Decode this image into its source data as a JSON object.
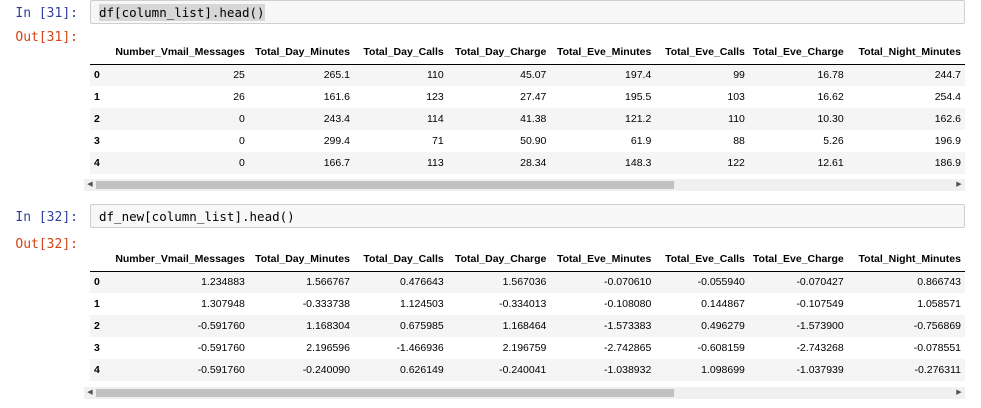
{
  "cells": [
    {
      "in_prompt": "In [31]:",
      "code": "df[column_list].head()",
      "out_prompt": "Out[31]:",
      "columns": [
        "Number_Vmail_Messages",
        "Total_Day_Minutes",
        "Total_Day_Calls",
        "Total_Day_Charge",
        "Total_Eve_Minutes",
        "Total_Eve_Calls",
        "Total_Eve_Charge",
        "Total_Night_Minutes"
      ],
      "rows": [
        {
          "index": "0",
          "values": [
            "25",
            "265.1",
            "110",
            "45.07",
            "197.4",
            "99",
            "16.78",
            "244.7"
          ]
        },
        {
          "index": "1",
          "values": [
            "26",
            "161.6",
            "123",
            "27.47",
            "195.5",
            "103",
            "16.62",
            "254.4"
          ]
        },
        {
          "index": "2",
          "values": [
            "0",
            "243.4",
            "114",
            "41.38",
            "121.2",
            "110",
            "10.30",
            "162.6"
          ]
        },
        {
          "index": "3",
          "values": [
            "0",
            "299.4",
            "71",
            "50.90",
            "61.9",
            "88",
            "5.26",
            "196.9"
          ]
        },
        {
          "index": "4",
          "values": [
            "0",
            "166.7",
            "113",
            "28.34",
            "148.3",
            "122",
            "12.61",
            "186.9"
          ]
        }
      ]
    },
    {
      "in_prompt": "In [32]:",
      "code": "df_new[column_list].head()",
      "out_prompt": "Out[32]:",
      "columns": [
        "Number_Vmail_Messages",
        "Total_Day_Minutes",
        "Total_Day_Calls",
        "Total_Day_Charge",
        "Total_Eve_Minutes",
        "Total_Eve_Calls",
        "Total_Eve_Charge",
        "Total_Night_Minutes"
      ],
      "rows": [
        {
          "index": "0",
          "values": [
            "1.234883",
            "1.566767",
            "0.476643",
            "1.567036",
            "-0.070610",
            "-0.055940",
            "-0.070427",
            "0.866743"
          ]
        },
        {
          "index": "1",
          "values": [
            "1.307948",
            "-0.333738",
            "1.124503",
            "-0.334013",
            "-0.108080",
            "0.144867",
            "-0.107549",
            "1.058571"
          ]
        },
        {
          "index": "2",
          "values": [
            "-0.591760",
            "1.168304",
            "0.675985",
            "1.168464",
            "-1.573383",
            "0.496279",
            "-1.573900",
            "-0.756869"
          ]
        },
        {
          "index": "3",
          "values": [
            "-0.591760",
            "2.196596",
            "-1.466936",
            "2.196759",
            "-2.742865",
            "-0.608159",
            "-2.743268",
            "-0.078551"
          ]
        },
        {
          "index": "4",
          "values": [
            "-0.591760",
            "-0.240090",
            "0.626149",
            "-0.240041",
            "-1.038932",
            "1.098699",
            "-1.037939",
            "-0.276311"
          ]
        }
      ]
    }
  ]
}
